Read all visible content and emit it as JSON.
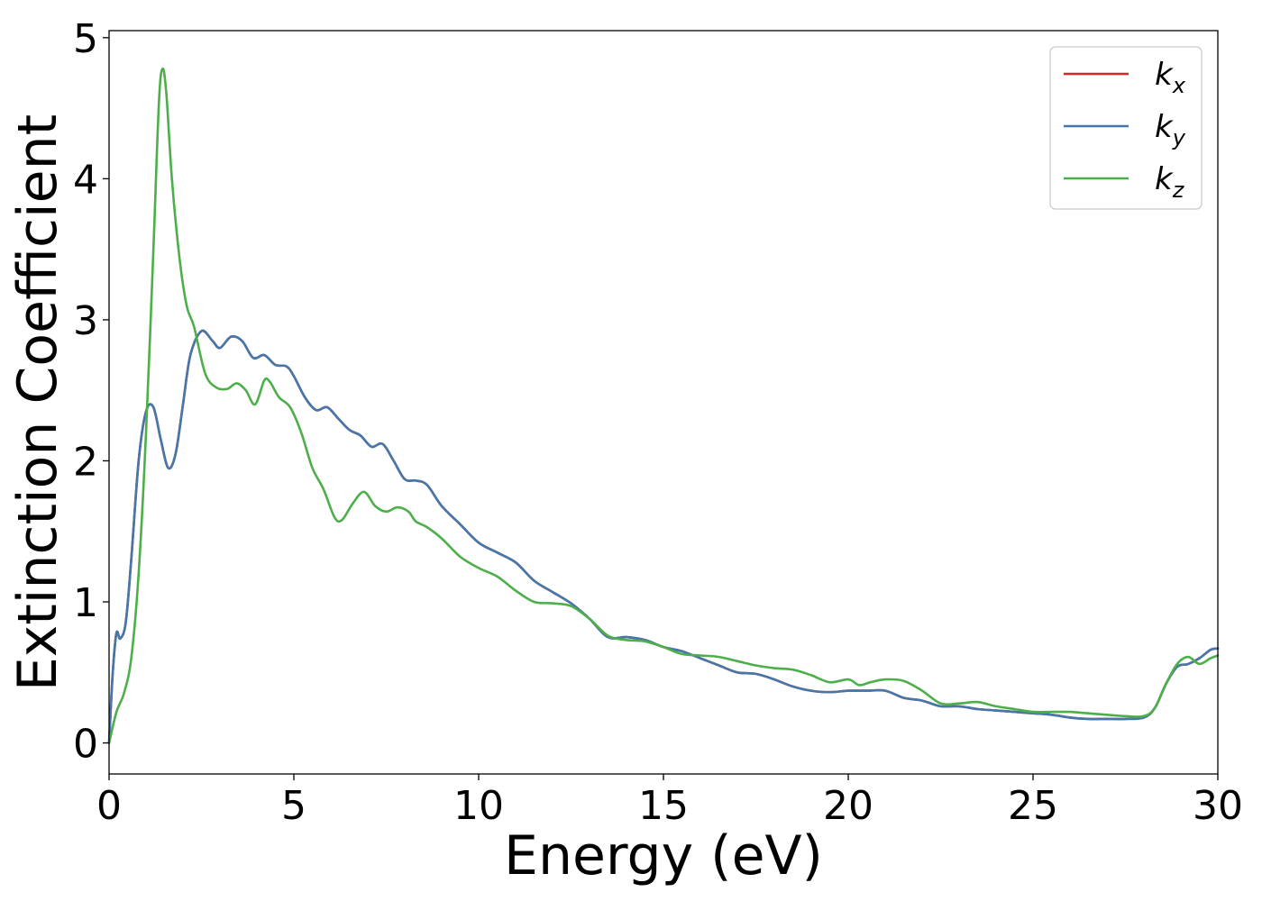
{
  "chart_data": {
    "type": "line",
    "title": "",
    "xlabel": "Energy (eV)",
    "ylabel": "Extinction Coefficient",
    "xlim": [
      0,
      30
    ],
    "ylim": [
      -0.22,
      5.05
    ],
    "xticks": [
      0,
      5,
      10,
      15,
      20,
      25,
      30
    ],
    "yticks": [
      0,
      1,
      2,
      3,
      4,
      5
    ],
    "xtick_labels": [
      "0",
      "5",
      "10",
      "15",
      "20",
      "25",
      "30"
    ],
    "ytick_labels": [
      "0",
      "1",
      "2",
      "3",
      "4",
      "5"
    ],
    "grid": false,
    "legend": {
      "placement": "top-right",
      "entries": [
        {
          "base": "k",
          "sub": "x"
        },
        {
          "base": "k",
          "sub": "y"
        },
        {
          "base": "k",
          "sub": "z"
        }
      ]
    },
    "series": [
      {
        "name": "k_x",
        "color": "#d62728",
        "x": [
          0,
          0.1,
          0.2,
          0.3,
          0.45,
          0.6,
          0.8,
          1.0,
          1.2,
          1.4,
          1.6,
          1.8,
          2.0,
          2.2,
          2.5,
          2.8,
          3.0,
          3.3,
          3.6,
          3.9,
          4.2,
          4.5,
          4.8,
          5.0,
          5.3,
          5.6,
          5.9,
          6.2,
          6.5,
          6.8,
          7.1,
          7.4,
          7.7,
          8.0,
          8.3,
          8.6,
          9.0,
          9.5,
          10.0,
          10.5,
          11.0,
          11.5,
          12.0,
          12.5,
          13.0,
          13.5,
          14.0,
          14.5,
          15.0,
          15.5,
          16.0,
          16.5,
          17.0,
          17.5,
          18.0,
          18.5,
          19.0,
          19.5,
          20.0,
          20.5,
          21.0,
          21.5,
          22.0,
          22.5,
          23.0,
          23.5,
          24.0,
          24.5,
          25.0,
          25.5,
          26.0,
          26.5,
          27.0,
          27.5,
          28.0,
          28.3,
          28.6,
          28.9,
          29.2,
          29.5,
          29.8,
          30.0
        ],
        "y": [
          0.0,
          0.5,
          0.78,
          0.74,
          0.85,
          1.3,
          2.0,
          2.35,
          2.38,
          2.15,
          1.95,
          2.05,
          2.4,
          2.75,
          2.92,
          2.85,
          2.8,
          2.88,
          2.85,
          2.73,
          2.75,
          2.68,
          2.67,
          2.6,
          2.45,
          2.36,
          2.38,
          2.3,
          2.22,
          2.18,
          2.1,
          2.12,
          2.0,
          1.87,
          1.86,
          1.83,
          1.68,
          1.55,
          1.42,
          1.35,
          1.28,
          1.15,
          1.07,
          0.99,
          0.88,
          0.75,
          0.75,
          0.73,
          0.68,
          0.65,
          0.6,
          0.55,
          0.5,
          0.49,
          0.45,
          0.4,
          0.37,
          0.36,
          0.37,
          0.37,
          0.37,
          0.32,
          0.3,
          0.26,
          0.26,
          0.24,
          0.23,
          0.22,
          0.21,
          0.2,
          0.18,
          0.17,
          0.17,
          0.17,
          0.18,
          0.25,
          0.42,
          0.54,
          0.56,
          0.6,
          0.66,
          0.67
        ]
      },
      {
        "name": "k_y",
        "color": "#4477aa",
        "x": [
          0,
          0.1,
          0.2,
          0.3,
          0.45,
          0.6,
          0.8,
          1.0,
          1.2,
          1.4,
          1.6,
          1.8,
          2.0,
          2.2,
          2.5,
          2.8,
          3.0,
          3.3,
          3.6,
          3.9,
          4.2,
          4.5,
          4.8,
          5.0,
          5.3,
          5.6,
          5.9,
          6.2,
          6.5,
          6.8,
          7.1,
          7.4,
          7.7,
          8.0,
          8.3,
          8.6,
          9.0,
          9.5,
          10.0,
          10.5,
          11.0,
          11.5,
          12.0,
          12.5,
          13.0,
          13.5,
          14.0,
          14.5,
          15.0,
          15.5,
          16.0,
          16.5,
          17.0,
          17.5,
          18.0,
          18.5,
          19.0,
          19.5,
          20.0,
          20.5,
          21.0,
          21.5,
          22.0,
          22.5,
          23.0,
          23.5,
          24.0,
          24.5,
          25.0,
          25.5,
          26.0,
          26.5,
          27.0,
          27.5,
          28.0,
          28.3,
          28.6,
          28.9,
          29.2,
          29.5,
          29.8,
          30.0
        ],
        "y": [
          0.0,
          0.5,
          0.78,
          0.74,
          0.85,
          1.3,
          2.0,
          2.35,
          2.38,
          2.15,
          1.95,
          2.05,
          2.4,
          2.75,
          2.92,
          2.85,
          2.8,
          2.88,
          2.85,
          2.73,
          2.75,
          2.68,
          2.67,
          2.6,
          2.45,
          2.36,
          2.38,
          2.3,
          2.22,
          2.18,
          2.1,
          2.12,
          2.0,
          1.87,
          1.86,
          1.83,
          1.68,
          1.55,
          1.42,
          1.35,
          1.28,
          1.15,
          1.07,
          0.99,
          0.88,
          0.75,
          0.75,
          0.73,
          0.68,
          0.65,
          0.6,
          0.55,
          0.5,
          0.49,
          0.45,
          0.4,
          0.37,
          0.36,
          0.37,
          0.37,
          0.37,
          0.32,
          0.3,
          0.26,
          0.26,
          0.24,
          0.23,
          0.22,
          0.21,
          0.2,
          0.18,
          0.17,
          0.17,
          0.17,
          0.18,
          0.25,
          0.42,
          0.54,
          0.56,
          0.6,
          0.66,
          0.67
        ]
      },
      {
        "name": "k_z",
        "color": "#4daf4a",
        "x": [
          0,
          0.2,
          0.4,
          0.6,
          0.8,
          1.0,
          1.2,
          1.35,
          1.45,
          1.55,
          1.7,
          1.9,
          2.1,
          2.3,
          2.6,
          2.9,
          3.2,
          3.45,
          3.7,
          3.95,
          4.2,
          4.35,
          4.6,
          4.9,
          5.2,
          5.5,
          5.8,
          6.1,
          6.3,
          6.6,
          6.9,
          7.2,
          7.5,
          7.8,
          8.1,
          8.3,
          8.6,
          9.0,
          9.5,
          10.0,
          10.5,
          11.0,
          11.5,
          12.0,
          12.5,
          13.0,
          13.5,
          14.0,
          14.5,
          15.0,
          15.5,
          16.0,
          16.5,
          17.0,
          17.5,
          18.0,
          18.5,
          19.0,
          19.5,
          20.0,
          20.3,
          20.6,
          21.0,
          21.5,
          22.0,
          22.5,
          23.0,
          23.5,
          24.0,
          24.5,
          25.0,
          25.5,
          26.0,
          26.5,
          27.0,
          27.5,
          28.0,
          28.3,
          28.6,
          28.9,
          29.2,
          29.5,
          29.8,
          30.0
        ],
        "y": [
          0.0,
          0.22,
          0.35,
          0.6,
          1.2,
          2.2,
          3.5,
          4.55,
          4.78,
          4.6,
          4.0,
          3.45,
          3.1,
          2.95,
          2.62,
          2.52,
          2.51,
          2.55,
          2.5,
          2.4,
          2.57,
          2.56,
          2.45,
          2.38,
          2.2,
          1.95,
          1.8,
          1.6,
          1.58,
          1.7,
          1.78,
          1.68,
          1.64,
          1.67,
          1.64,
          1.57,
          1.53,
          1.45,
          1.32,
          1.24,
          1.18,
          1.08,
          1.0,
          0.99,
          0.97,
          0.88,
          0.76,
          0.73,
          0.72,
          0.68,
          0.63,
          0.62,
          0.61,
          0.58,
          0.55,
          0.53,
          0.52,
          0.48,
          0.43,
          0.45,
          0.41,
          0.43,
          0.45,
          0.44,
          0.37,
          0.28,
          0.28,
          0.29,
          0.26,
          0.24,
          0.22,
          0.22,
          0.22,
          0.21,
          0.2,
          0.19,
          0.19,
          0.25,
          0.42,
          0.56,
          0.61,
          0.56,
          0.6,
          0.62
        ]
      }
    ]
  }
}
